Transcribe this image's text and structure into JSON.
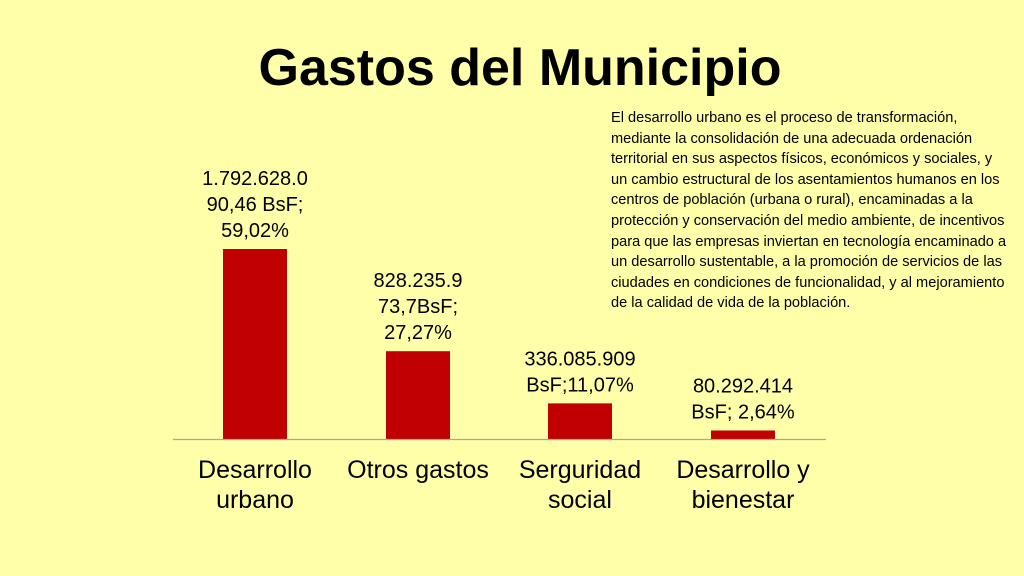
{
  "title": "Gastos del Municipio",
  "description": "El desarrollo urbano es el proceso de transformación, mediante la consolidación de una adecuada ordenación territorial en sus aspectos físicos, económicos y sociales, y un cambio estructural de los asentamientos humanos en los centros de población (urbana o rural), encaminadas a la protección y conservación del medio ambiente, de incentivos para que las empresas inviertan en tecnología encaminado a un desarrollo sustentable, a la promoción de servicios de las ciudades en condiciones de funcionalidad, y al mejoramiento de la calidad de vida de la población.",
  "chart_data": {
    "type": "bar",
    "title": "Gastos del Municipio",
    "xlabel": "",
    "ylabel": "",
    "categories": [
      [
        "Desarrollo",
        "urbano"
      ],
      [
        "Otros gastos"
      ],
      [
        "Serguridad",
        "social"
      ],
      [
        "Desarrollo y",
        "bienestar"
      ]
    ],
    "values": [
      1792628090.46,
      828235973.7,
      336085909,
      80292414
    ],
    "percentages": [
      59.02,
      27.27,
      11.07,
      2.64
    ],
    "data_labels": [
      [
        "1.792.628.0",
        "90,46 BsF;",
        "59,02%"
      ],
      [
        "828.235.9",
        "73,7BsF;",
        "27,27%"
      ],
      [
        "336.085.909",
        "BsF;11,07%"
      ],
      [
        "80.292.414",
        "BsF; 2,64%"
      ]
    ],
    "bar_color": "#c00000",
    "axis_color": "#a6a6a6",
    "grid": false,
    "legend": "none"
  }
}
